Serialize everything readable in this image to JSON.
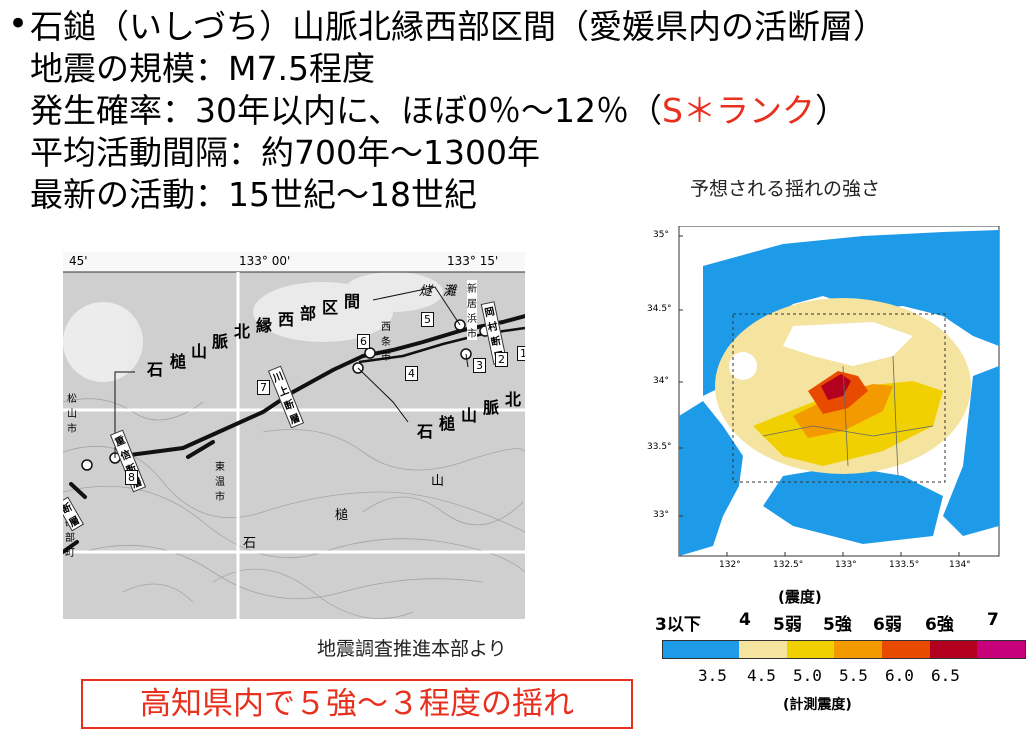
{
  "header": {
    "bullet": "•",
    "line1": "石鎚（いしづち）山脈北縁西部区間（愛媛県内の活断層）",
    "line2": "地震の規模：M7.5程度",
    "line3_prefix": "発生確率：30年以内に、ほぼ0％～12％（",
    "line3_rank": "S＊ランク",
    "line3_suffix": "）",
    "line4": "平均活動間隔：約700年～1300年",
    "line5": "最新の活動：15世紀～18世紀"
  },
  "fault_map": {
    "lon_labels": [
      "45'",
      "133° 00'",
      "133° 15'"
    ],
    "mountain_label": [
      "石",
      "槌",
      "山",
      "脈",
      "北",
      "縁",
      "西",
      "部",
      "区",
      "間"
    ],
    "mountain_label2": [
      "石",
      "槌",
      "山",
      "脈",
      "北"
    ],
    "scattered_chars": [
      "山",
      "槌",
      "石",
      "燧",
      "灘"
    ],
    "places": [
      "新居浜市",
      "西条市",
      "松山市",
      "東温市",
      "砥部町"
    ],
    "faults": [
      "岡村断層",
      "川上断層",
      "重信断層",
      "断層"
    ],
    "numbers": [
      "1",
      "2",
      "3",
      "4",
      "5",
      "6",
      "7",
      "8"
    ]
  },
  "intensity_map": {
    "caption": "予想される揺れの強さ",
    "lat_labels": [
      "35°",
      "34.5°",
      "34°",
      "33.5°",
      "33°"
    ],
    "lon_labels": [
      "132°",
      "132.5°",
      "133°",
      "133.5°",
      "134°"
    ]
  },
  "legend": {
    "title": "(震度)",
    "scale": [
      "3以下",
      "4",
      "5弱",
      "5強",
      "6弱",
      "6強",
      "7"
    ],
    "colors": [
      "#1e9be8",
      "#f5e3a0",
      "#f0d000",
      "#f39a00",
      "#e84a00",
      "#b3001e",
      "#c8007a"
    ],
    "ticks": [
      "3.5",
      "4.5",
      "5.0",
      "5.5",
      "6.0",
      "6.5"
    ],
    "unit": "(計測震度)"
  },
  "source": "地震調査推進本部より",
  "shaking_note": "高知県内で５強～３程度の揺れ"
}
